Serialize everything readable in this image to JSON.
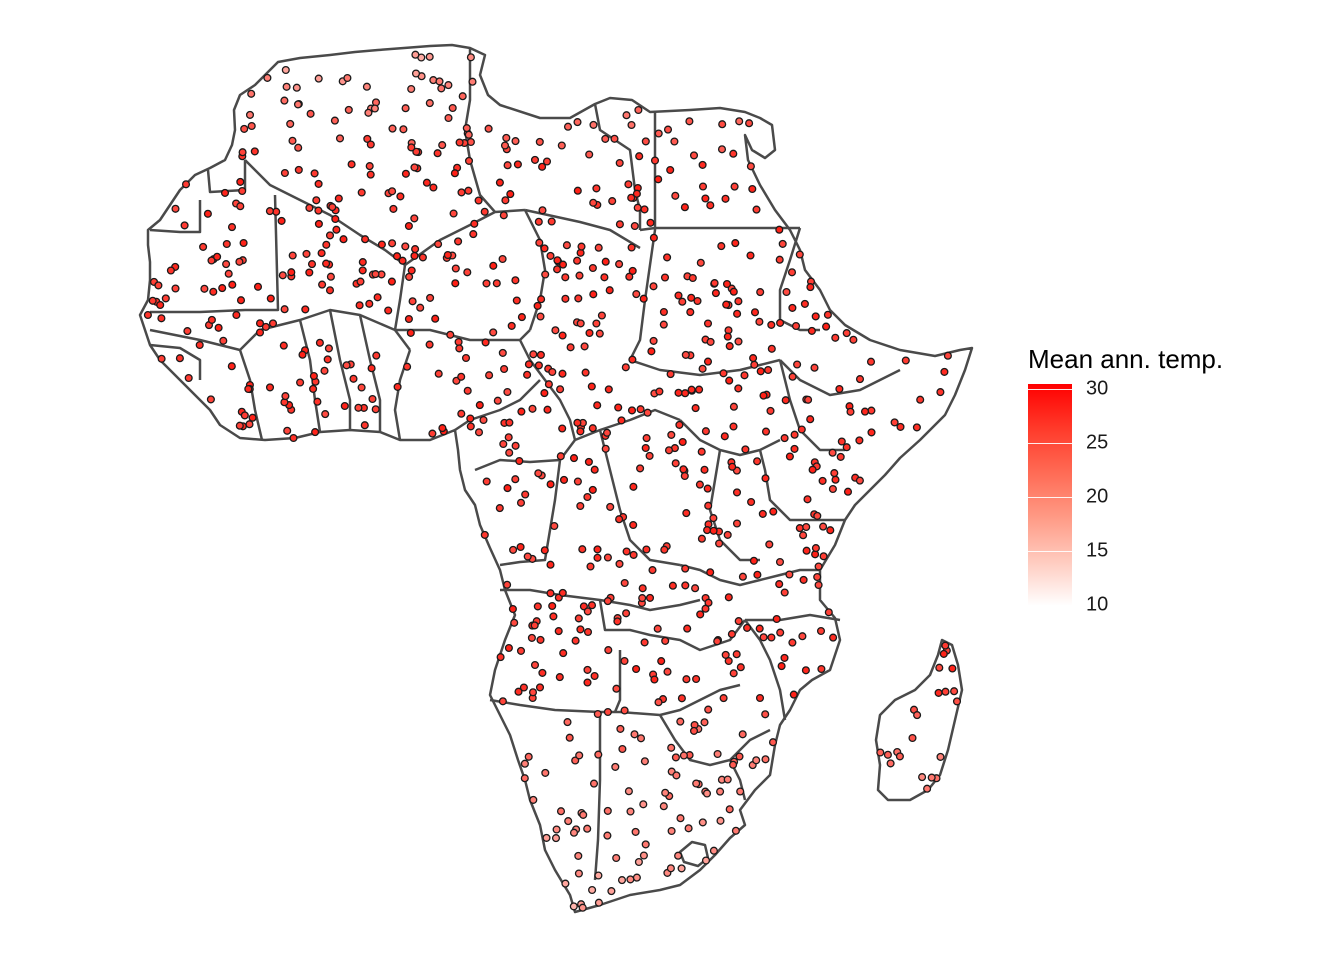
{
  "legend": {
    "title": "Mean ann. temp.",
    "ticks": [
      {
        "value": 30,
        "label": "30"
      },
      {
        "value": 25,
        "label": "25"
      },
      {
        "value": 20,
        "label": "20"
      },
      {
        "value": 15,
        "label": "15"
      },
      {
        "value": 10,
        "label": "10"
      }
    ],
    "range": [
      10,
      30
    ],
    "color_low": "#ffffff",
    "color_high": "#ff0000"
  },
  "map": {
    "region": "Africa",
    "border_color": "#4a4a4a",
    "point_stroke": "#1a1a1a"
  }
}
